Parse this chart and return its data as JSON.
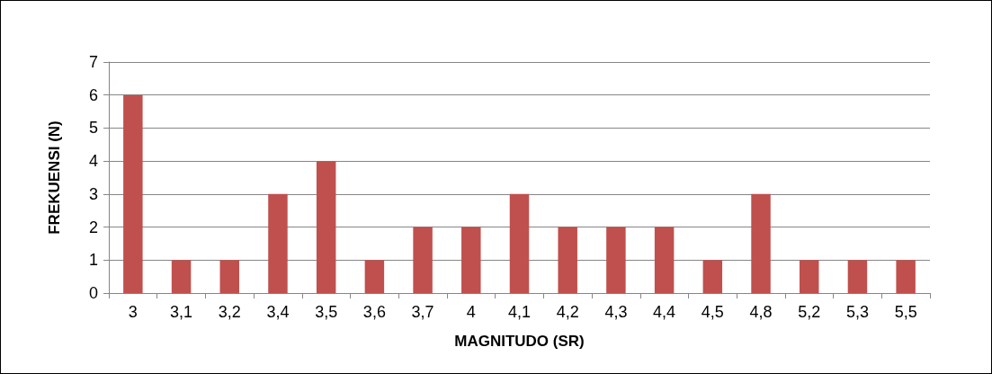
{
  "chart_data": {
    "type": "bar",
    "xlabel": "MAGNITUDO (SR)",
    "ylabel": "FREKUENSI (N)",
    "categories": [
      "3",
      "3,1",
      "3,2",
      "3,4",
      "3,5",
      "3,6",
      "3,7",
      "4",
      "4,1",
      "4,2",
      "4,3",
      "4,4",
      "4,5",
      "4,8",
      "5,2",
      "5,3",
      "5,5"
    ],
    "values": [
      6,
      1,
      1,
      3,
      4,
      1,
      2,
      2,
      3,
      2,
      2,
      2,
      1,
      3,
      1,
      1,
      1
    ],
    "color": "#c0504d",
    "ylim": [
      0,
      7
    ],
    "yticks": [
      0,
      1,
      2,
      3,
      4,
      5,
      6,
      7
    ],
    "grid": "y"
  }
}
